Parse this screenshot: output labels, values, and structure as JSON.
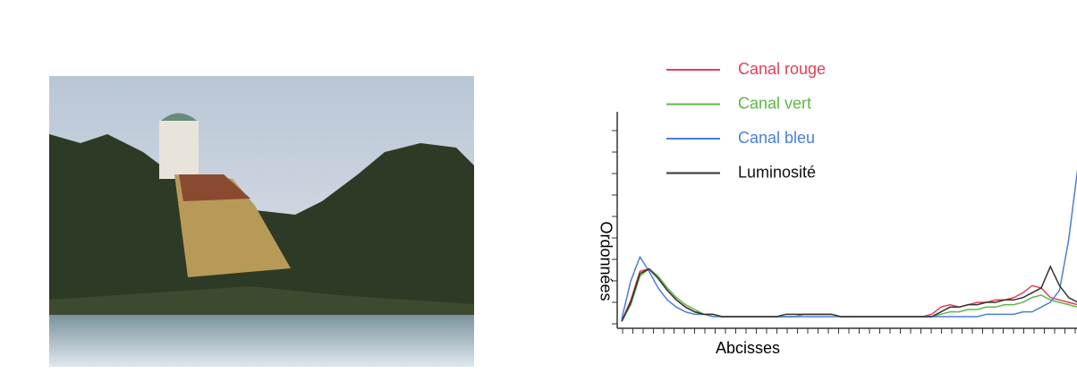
{
  "chart_data": {
    "type": "line",
    "xlabel": "Abcisses",
    "ylabel": "Ordonnées",
    "xlim": [
      0,
      255
    ],
    "ylim": [
      0,
      100
    ],
    "x": [
      0,
      5,
      10,
      15,
      20,
      25,
      30,
      35,
      40,
      45,
      50,
      55,
      60,
      65,
      70,
      75,
      80,
      85,
      90,
      95,
      100,
      105,
      110,
      115,
      120,
      125,
      130,
      135,
      140,
      145,
      150,
      155,
      160,
      165,
      170,
      175,
      180,
      185,
      190,
      195,
      200,
      205,
      210,
      215,
      220,
      225,
      230,
      235,
      240,
      245,
      250,
      255
    ],
    "series": [
      {
        "name": "Canal rouge",
        "color": "#e0405a",
        "values": [
          1,
          10,
          22,
          23,
          19,
          14,
          10,
          7,
          5,
          4,
          4,
          3,
          3,
          3,
          3,
          3,
          3,
          3,
          3,
          3,
          4,
          4,
          4,
          4,
          3,
          3,
          3,
          3,
          3,
          3,
          3,
          3,
          3,
          3,
          4,
          7,
          8,
          7,
          8,
          9,
          9,
          10,
          10,
          11,
          13,
          16,
          15,
          11,
          10,
          9,
          8,
          8
        ]
      },
      {
        "name": "Canal vert",
        "color": "#5cb845",
        "values": [
          1,
          8,
          20,
          23,
          20,
          15,
          11,
          8,
          6,
          4,
          4,
          3,
          3,
          3,
          3,
          3,
          3,
          3,
          3,
          3,
          4,
          4,
          4,
          4,
          3,
          3,
          3,
          3,
          3,
          3,
          3,
          3,
          3,
          3,
          3,
          4,
          5,
          5,
          6,
          6,
          7,
          7,
          8,
          8,
          9,
          11,
          12,
          10,
          9,
          8,
          7,
          7
        ]
      },
      {
        "name": "Canal bleu",
        "color": "#4a7fd4",
        "values": [
          2,
          18,
          28,
          22,
          15,
          10,
          7,
          5,
          4,
          4,
          3,
          3,
          3,
          3,
          3,
          3,
          3,
          3,
          3,
          3,
          3,
          3,
          3,
          3,
          3,
          3,
          3,
          3,
          3,
          3,
          3,
          3,
          3,
          3,
          3,
          3,
          3,
          3,
          3,
          3,
          4,
          4,
          4,
          4,
          5,
          5,
          7,
          9,
          14,
          35,
          65,
          85
        ]
      },
      {
        "name": "Luminosité",
        "color": "#333333",
        "values": [
          1,
          9,
          21,
          23,
          19,
          14,
          10,
          7,
          5,
          4,
          4,
          3,
          3,
          3,
          3,
          3,
          3,
          3,
          4,
          4,
          4,
          4,
          4,
          4,
          3,
          3,
          3,
          3,
          3,
          3,
          3,
          3,
          3,
          3,
          3,
          5,
          7,
          7,
          8,
          8,
          9,
          9,
          10,
          10,
          11,
          13,
          15,
          24,
          16,
          11,
          9,
          8
        ]
      }
    ]
  }
}
